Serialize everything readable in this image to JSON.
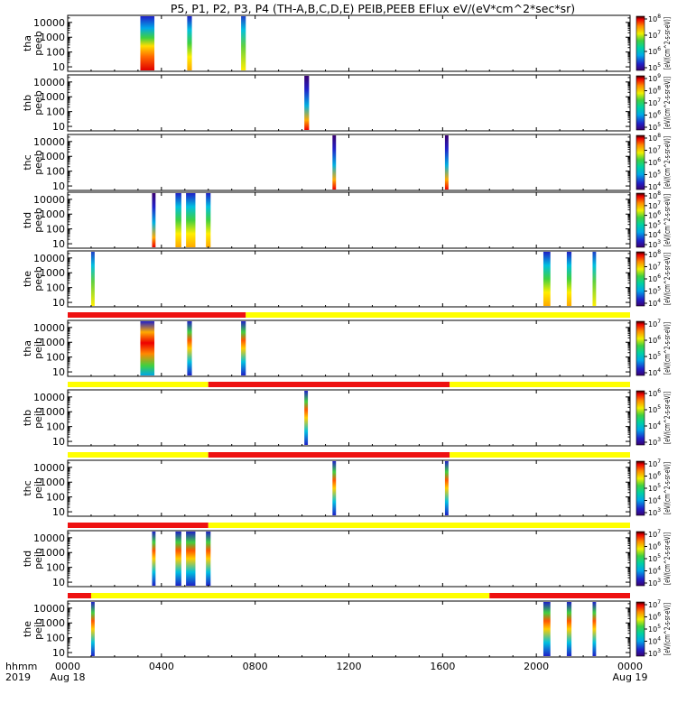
{
  "title": "P5, P1, P2, P3, P4 (TH-A,B,C,D,E) PEIB,PEEB EFlux eV/(eV*cm^2*sec*sr)",
  "colorbar_label": "[eV/(cm^2-s-sr-eV)]",
  "corner_label": {
    "line1": "hhmm",
    "line2": "2019"
  },
  "x_ticks": [
    {
      "hour": 0,
      "label": "0000",
      "date": "Aug 18"
    },
    {
      "hour": 4,
      "label": "0400",
      "date": ""
    },
    {
      "hour": 8,
      "label": "0800",
      "date": ""
    },
    {
      "hour": 12,
      "label": "1200",
      "date": ""
    },
    {
      "hour": 16,
      "label": "1600",
      "date": ""
    },
    {
      "hour": 20,
      "label": "2000",
      "date": ""
    },
    {
      "hour": 24,
      "label": "0000",
      "date": "Aug 19"
    }
  ],
  "colors": {
    "status_red": "#ee1111",
    "status_yellow": "#ffff00",
    "axis": "#000000"
  },
  "chart_data": {
    "type": "heatmap",
    "title": "P5, P1, P2, P3, P4 (TH-A,B,C,D,E) PEIB,PEEB EFlux eV/(eV*cm^2*sec*sr)",
    "xlim": [
      0,
      24
    ],
    "ylog": true,
    "ylim": [
      5,
      30000
    ],
    "y_ticks": [
      "10",
      "100",
      "1000",
      "10000"
    ],
    "panels": [
      {
        "label1": "tha",
        "label2": "peeb",
        "spin": false,
        "bursts": [
          [
            3.1,
            3.7,
            "e_hot"
          ],
          [
            5.1,
            5.3,
            "e_mid"
          ],
          [
            7.4,
            7.6,
            "e_weak"
          ]
        ],
        "cb": [
          5,
          8
        ]
      },
      {
        "label1": "thb",
        "label2": "peeb",
        "spin": false,
        "bursts": [
          [
            10.1,
            10.3,
            "e_blue"
          ]
        ],
        "cb": [
          5,
          9
        ]
      },
      {
        "label1": "thc",
        "label2": "peeb",
        "spin": false,
        "bursts": [
          [
            11.3,
            11.45,
            "e_blue"
          ],
          [
            16.1,
            16.25,
            "e_blue"
          ]
        ],
        "cb": [
          4,
          8
        ]
      },
      {
        "label1": "thd",
        "label2": "peeb",
        "spin": false,
        "bursts": [
          [
            3.6,
            3.75,
            "e_blue"
          ],
          [
            4.6,
            4.85,
            "e_mid"
          ],
          [
            5.05,
            5.45,
            "e_mid"
          ],
          [
            5.9,
            6.1,
            "e_mid"
          ]
        ],
        "cb": [
          3,
          8
        ]
      },
      {
        "label1": "the",
        "label2": "peeb",
        "spin": false,
        "bursts": [
          [
            1.0,
            1.15,
            "e_weak"
          ],
          [
            20.3,
            20.6,
            "e_mid"
          ],
          [
            21.3,
            21.5,
            "e_mid"
          ],
          [
            22.4,
            22.55,
            "e_weak"
          ]
        ],
        "cb": [
          4,
          8
        ]
      },
      {
        "label1": "tha",
        "label2": "peib",
        "spin": true,
        "status": [
          [
            0,
            7.6,
            "red"
          ],
          [
            7.6,
            24,
            "yellow"
          ]
        ],
        "bursts": [
          [
            3.1,
            3.7,
            "i_hot"
          ],
          [
            5.1,
            5.3,
            "i_mid"
          ],
          [
            7.4,
            7.6,
            "i_mid"
          ]
        ],
        "cb": [
          4,
          7
        ]
      },
      {
        "label1": "thb",
        "label2": "peib",
        "spin": true,
        "status": [
          [
            0,
            6.0,
            "yellow"
          ],
          [
            6.0,
            16.3,
            "red"
          ],
          [
            16.3,
            24,
            "yellow"
          ]
        ],
        "bursts": [
          [
            10.1,
            10.25,
            "i_mid"
          ]
        ],
        "cb": [
          3,
          6
        ]
      },
      {
        "label1": "thc",
        "label2": "peib",
        "spin": true,
        "status": [
          [
            0,
            6.0,
            "yellow"
          ],
          [
            6.0,
            16.3,
            "red"
          ],
          [
            16.3,
            24,
            "yellow"
          ]
        ],
        "bursts": [
          [
            11.3,
            11.45,
            "i_mid"
          ],
          [
            16.1,
            16.25,
            "i_mid"
          ]
        ],
        "cb": [
          3,
          7
        ]
      },
      {
        "label1": "thd",
        "label2": "peib",
        "spin": true,
        "status": [
          [
            0,
            6.0,
            "red"
          ],
          [
            6.0,
            24,
            "yellow"
          ]
        ],
        "bursts": [
          [
            3.6,
            3.75,
            "i_mid"
          ],
          [
            4.6,
            4.85,
            "i_mid"
          ],
          [
            5.05,
            5.45,
            "i_mid"
          ],
          [
            5.9,
            6.1,
            "i_mid"
          ]
        ],
        "cb": [
          3,
          7
        ]
      },
      {
        "label1": "the",
        "label2": "peib",
        "spin": true,
        "status": [
          [
            0,
            1.0,
            "red"
          ],
          [
            1.0,
            18.0,
            "yellow"
          ],
          [
            18.0,
            24,
            "red"
          ]
        ],
        "bursts": [
          [
            1.0,
            1.15,
            "i_mid"
          ],
          [
            20.3,
            20.6,
            "i_mid"
          ],
          [
            21.3,
            21.5,
            "i_mid"
          ],
          [
            22.4,
            22.55,
            "i_mid"
          ]
        ],
        "cb": [
          3,
          7
        ]
      }
    ]
  }
}
